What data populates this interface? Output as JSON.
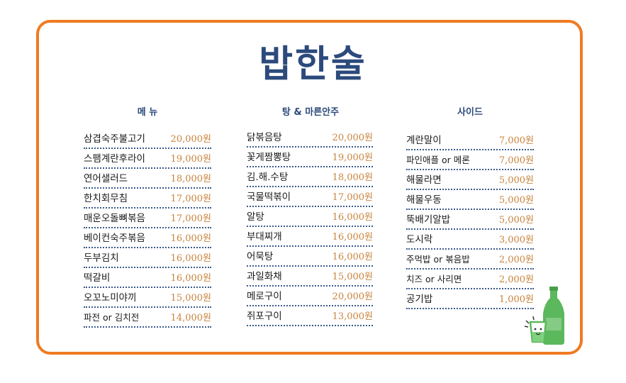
{
  "title": "밥한술",
  "colors": {
    "accent": "#f07a22",
    "title": "#2c4a7c",
    "price": "#c8843e",
    "bottle": "#5cb85c"
  },
  "columns": [
    {
      "header": "메 뉴",
      "items": [
        {
          "name": "삼겹숙주불고기",
          "price": "20,000원"
        },
        {
          "name": "스팸계란후라이",
          "price": "19,000원"
        },
        {
          "name": "연어샐러드",
          "price": "18,000원"
        },
        {
          "name": "한치회무침",
          "price": "17,000원"
        },
        {
          "name": "매운오돌뼈볶음",
          "price": "17,000원"
        },
        {
          "name": "베이컨숙주볶음",
          "price": "16,000원"
        },
        {
          "name": "두부김치",
          "price": "16,000원"
        },
        {
          "name": "떡갈비",
          "price": "16,000원"
        },
        {
          "name": "오꼬노미야끼",
          "price": "15,000원"
        },
        {
          "name": "파전 or 김치전",
          "price": "14,000원"
        }
      ]
    },
    {
      "header": "탕 & 마른안주",
      "items": [
        {
          "name": "닭볶음탕",
          "price": "20,000원"
        },
        {
          "name": "꽃게짬뽕탕",
          "price": "19,000원"
        },
        {
          "name": "김.해.수탕",
          "price": "18,000원"
        },
        {
          "name": "국물떡볶이",
          "price": "17,000원"
        },
        {
          "name": "알탕",
          "price": "16,000원"
        },
        {
          "name": "부대찌개",
          "price": "16,000원"
        },
        {
          "name": "어묵탕",
          "price": "16,000원"
        },
        {
          "name": "과일화채",
          "price": "15,000원"
        },
        {
          "name": "메로구이",
          "price": "20,000원"
        },
        {
          "name": "쥐포구이",
          "price": "13,000원"
        }
      ]
    },
    {
      "header": "사이드",
      "items": [
        {
          "name": "계란말이",
          "price": "7,000원"
        },
        {
          "name": "파인애플 or 메론",
          "price": "7,000원"
        },
        {
          "name": "해물라면",
          "price": "5,000원"
        },
        {
          "name": "해물우동",
          "price": "5,000원"
        },
        {
          "name": "뚝배기알밥",
          "price": "5,000원"
        },
        {
          "name": "도시락",
          "price": "3,000원"
        },
        {
          "name": "주먹밥 or 볶음밥",
          "price": "2,000원"
        },
        {
          "name": "치즈 or 사리면",
          "price": "2,000원"
        },
        {
          "name": "공기밥",
          "price": "1,000원"
        }
      ]
    }
  ]
}
